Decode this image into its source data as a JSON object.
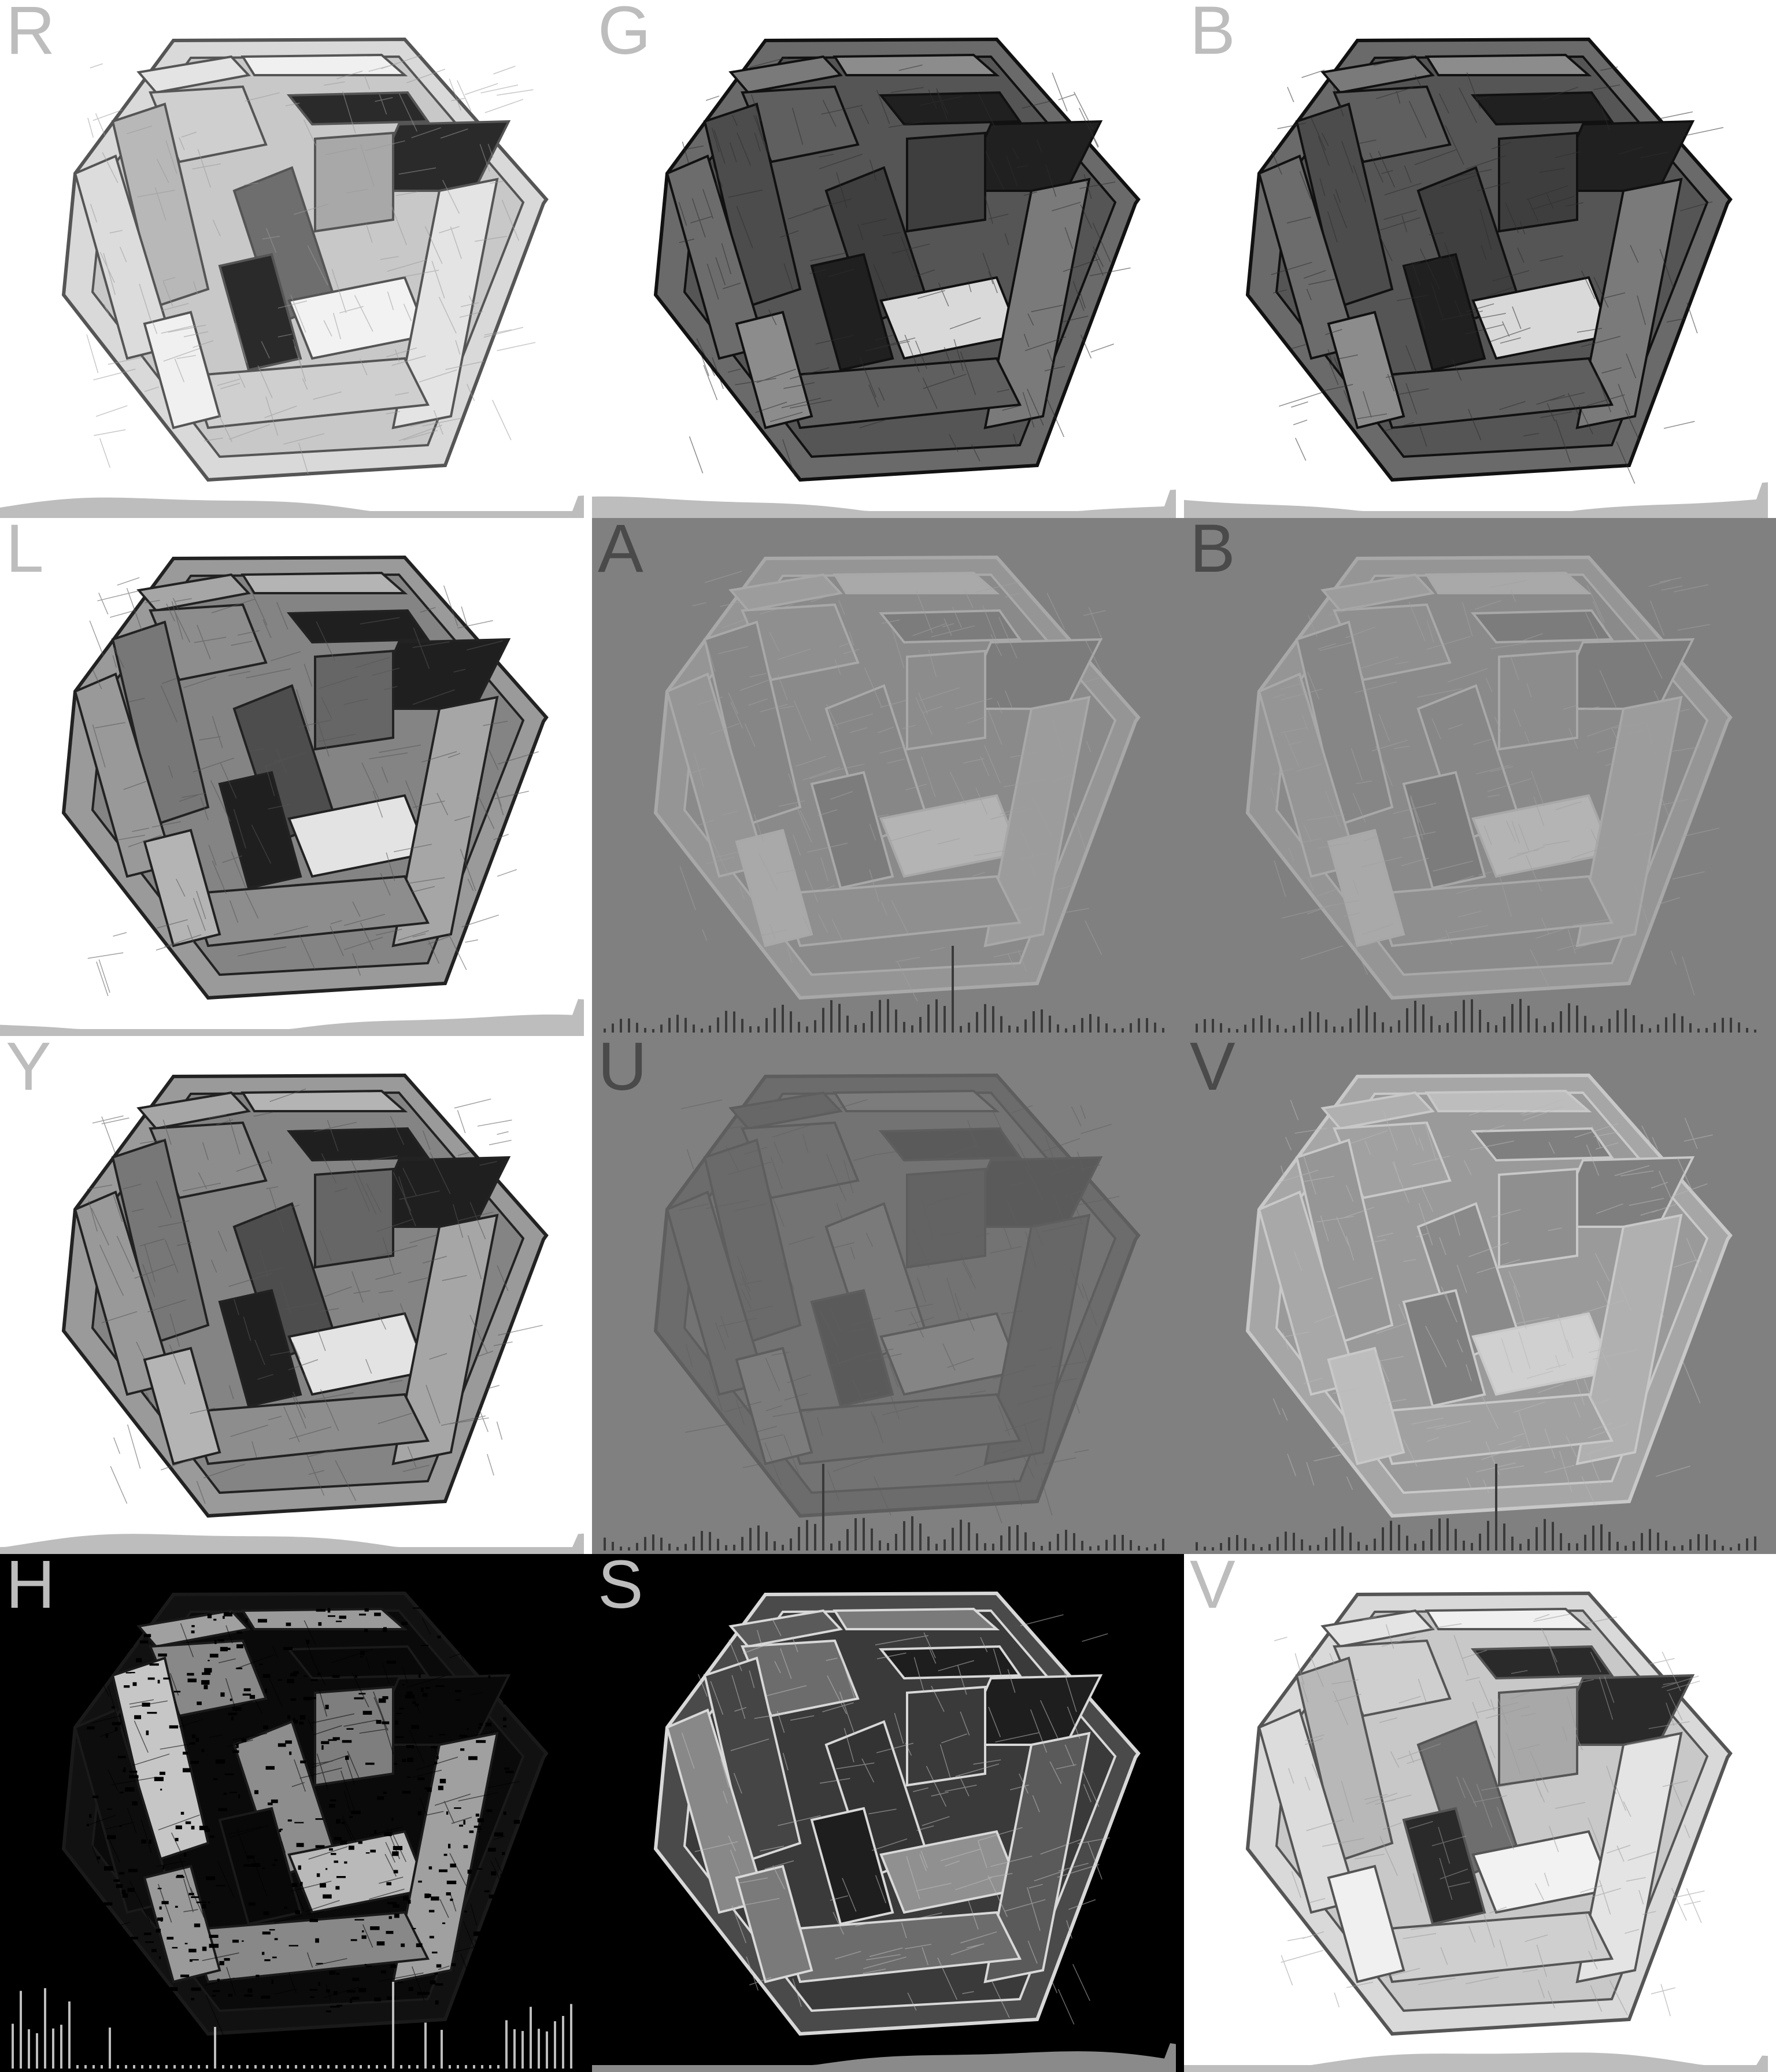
{
  "panels": [
    {
      "id": "r",
      "label": "R",
      "bg": "#ffffff",
      "label_color": "#bdbdbd",
      "style": "light",
      "histogram": "smooth",
      "hist_color": "#bdbdbd"
    },
    {
      "id": "g",
      "label": "G",
      "bg": "#ffffff",
      "label_color": "#bdbdbd",
      "style": "dark",
      "histogram": "smooth",
      "hist_color": "#bdbdbd"
    },
    {
      "id": "b",
      "label": "B",
      "bg": "#ffffff",
      "label_color": "#bdbdbd",
      "style": "dark",
      "histogram": "smooth",
      "hist_color": "#bdbdbd"
    },
    {
      "id": "l",
      "label": "L",
      "bg": "#ffffff",
      "label_color": "#bdbdbd",
      "style": "mid",
      "histogram": "smooth",
      "hist_color": "#bdbdbd"
    },
    {
      "id": "a",
      "label": "A",
      "bg": "#808080",
      "label_color": "#4a4a4a",
      "style": "ghost",
      "histogram": "bars",
      "hist_color": "#3a3a3a"
    },
    {
      "id": "bb",
      "label": "B",
      "bg": "#808080",
      "label_color": "#4a4a4a",
      "style": "ghost",
      "histogram": "bars",
      "hist_color": "#3a3a3a"
    },
    {
      "id": "y",
      "label": "Y",
      "bg": "#ffffff",
      "label_color": "#bdbdbd",
      "style": "mid",
      "histogram": "smooth",
      "hist_color": "#bdbdbd"
    },
    {
      "id": "u",
      "label": "U",
      "bg": "#808080",
      "label_color": "#4a4a4a",
      "style": "ghostdark",
      "histogram": "bars",
      "hist_color": "#3a3a3a"
    },
    {
      "id": "v",
      "label": "V",
      "bg": "#808080",
      "label_color": "#4a4a4a",
      "style": "ghostlight",
      "histogram": "bars",
      "hist_color": "#3a3a3a"
    },
    {
      "id": "h",
      "label": "H",
      "bg": "#000000",
      "label_color": "#bdbdbd",
      "style": "hue",
      "histogram": "bars",
      "hist_color": "#bdbdbd"
    },
    {
      "id": "s",
      "label": "S",
      "bg": "#000000",
      "label_color": "#bdbdbd",
      "style": "sat",
      "histogram": "smooth",
      "hist_color": "#8a8a8a"
    },
    {
      "id": "vv",
      "label": "V",
      "bg": "#ffffff",
      "label_color": "#bdbdbd",
      "style": "light",
      "histogram": "smooth",
      "hist_color": "#bdbdbd"
    }
  ]
}
